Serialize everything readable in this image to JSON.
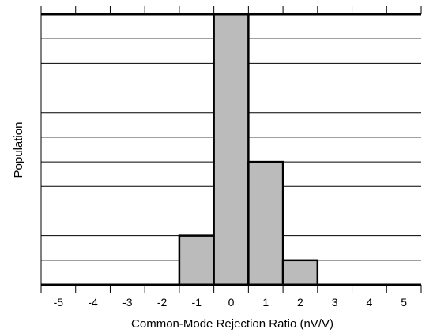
{
  "chart_data": {
    "type": "bar",
    "title": "",
    "xlabel": "Common-Mode Rejection Ratio (nV/V)",
    "ylabel": "Population",
    "categories": [
      "-5",
      "-4",
      "-3",
      "-2",
      "-1",
      "0",
      "1",
      "2",
      "3",
      "4",
      "5"
    ],
    "bins": [
      {
        "from": -1.5,
        "to": -0.5,
        "value": 2
      },
      {
        "from": -0.5,
        "to": 0.5,
        "value": 11
      },
      {
        "from": 0.5,
        "to": 1.5,
        "value": 5
      },
      {
        "from": 1.5,
        "to": 2.5,
        "value": 1
      }
    ],
    "xlim": [
      -5.5,
      5.5
    ],
    "ylim": [
      0,
      11
    ],
    "grid": true,
    "legend": "none",
    "colors": {
      "bar_fill": "#bbbbbb",
      "bar_stroke": "#000000",
      "grid": "#000000",
      "frame": "#000000"
    }
  }
}
